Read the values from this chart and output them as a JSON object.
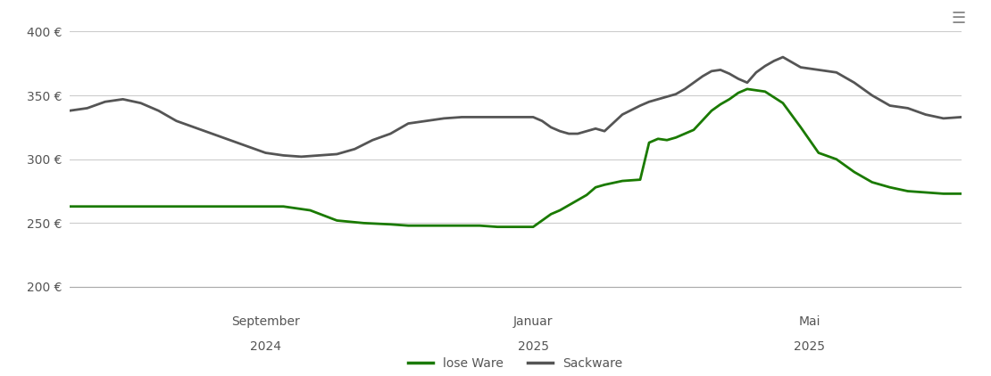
{
  "title": "",
  "ylabel_green": "lose Ware",
  "ylabel_gray": "Sackware",
  "line_color_green": "#1a7a00",
  "line_color_gray": "#555555",
  "background_color": "#ffffff",
  "grid_color": "#cccccc",
  "axis_label_color": "#555555",
  "ylim": [
    195,
    410
  ],
  "yticks": [
    200,
    250,
    300,
    350,
    400
  ],
  "ytick_labels": [
    "200 €",
    "250 €",
    "300 €",
    "350 €",
    "400 €"
  ],
  "x_tick_positions": [
    0.22,
    0.52,
    0.83
  ],
  "x_tick_labels_top": [
    "September",
    "Januar",
    "Mai"
  ],
  "x_tick_labels_bottom": [
    "2024",
    "2025",
    "2025"
  ],
  "lose_ware_x": [
    0,
    0.04,
    0.07,
    0.1,
    0.13,
    0.16,
    0.18,
    0.2,
    0.22,
    0.24,
    0.27,
    0.3,
    0.33,
    0.36,
    0.38,
    0.4,
    0.42,
    0.44,
    0.46,
    0.48,
    0.5,
    0.52,
    0.53,
    0.54,
    0.55,
    0.56,
    0.57,
    0.58,
    0.59,
    0.6,
    0.62,
    0.64,
    0.65,
    0.66,
    0.67,
    0.68,
    0.69,
    0.7,
    0.72,
    0.73,
    0.74,
    0.75,
    0.76,
    0.77,
    0.78,
    0.8,
    0.82,
    0.84,
    0.86,
    0.88,
    0.9,
    0.92,
    0.94,
    0.96,
    0.98,
    1.0
  ],
  "lose_ware_y": [
    263,
    263,
    263,
    263,
    263,
    263,
    263,
    263,
    263,
    263,
    260,
    252,
    250,
    249,
    248,
    248,
    248,
    248,
    248,
    247,
    247,
    247,
    252,
    257,
    260,
    264,
    268,
    272,
    278,
    280,
    283,
    284,
    313,
    316,
    315,
    317,
    320,
    323,
    338,
    343,
    347,
    352,
    355,
    354,
    353,
    344,
    325,
    305,
    300,
    290,
    282,
    278,
    275,
    274,
    273,
    273
  ],
  "sackware_x": [
    0,
    0.02,
    0.04,
    0.06,
    0.08,
    0.1,
    0.12,
    0.14,
    0.16,
    0.18,
    0.2,
    0.22,
    0.24,
    0.26,
    0.28,
    0.3,
    0.32,
    0.34,
    0.36,
    0.38,
    0.4,
    0.42,
    0.44,
    0.46,
    0.48,
    0.5,
    0.52,
    0.53,
    0.54,
    0.55,
    0.56,
    0.57,
    0.58,
    0.59,
    0.6,
    0.62,
    0.64,
    0.65,
    0.66,
    0.67,
    0.68,
    0.69,
    0.7,
    0.71,
    0.72,
    0.73,
    0.74,
    0.75,
    0.76,
    0.77,
    0.78,
    0.79,
    0.8,
    0.82,
    0.84,
    0.86,
    0.88,
    0.9,
    0.92,
    0.94,
    0.96,
    0.98,
    1.0
  ],
  "sackware_y": [
    338,
    340,
    345,
    347,
    344,
    338,
    330,
    325,
    320,
    315,
    310,
    305,
    303,
    302,
    303,
    304,
    308,
    315,
    320,
    328,
    330,
    332,
    333,
    333,
    333,
    333,
    333,
    330,
    325,
    322,
    320,
    320,
    322,
    324,
    322,
    335,
    342,
    345,
    347,
    349,
    351,
    355,
    360,
    365,
    369,
    370,
    367,
    363,
    360,
    368,
    373,
    377,
    380,
    372,
    370,
    368,
    360,
    350,
    342,
    340,
    335,
    332,
    333
  ]
}
